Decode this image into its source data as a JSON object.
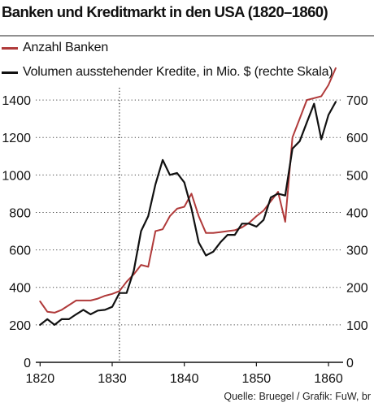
{
  "chart_data": {
    "type": "line",
    "title": "Banken und Kreditmarkt in den USA (1820–1860)",
    "source": "Quelle: Bruegel / Grafik: FuW, br",
    "x_ticks": [
      1820,
      1830,
      1840,
      1850,
      1860
    ],
    "x_tick_labels": [
      "1820",
      "1830",
      "1840",
      "1850",
      "1860"
    ],
    "xlim": [
      1819.4,
      1861.8
    ],
    "marked_year": 1831,
    "y_left": {
      "ylim": [
        0,
        1500
      ],
      "ticks": [
        0,
        200,
        400,
        600,
        800,
        1000,
        1200,
        1400
      ],
      "tick_labels": [
        "0",
        "200",
        "400",
        "600",
        "800",
        "1000",
        "1200",
        "1400"
      ]
    },
    "y_right": {
      "ylim": [
        0,
        750
      ],
      "ticks": [
        0,
        100,
        200,
        300,
        400,
        500,
        600,
        700
      ],
      "tick_labels": [
        "0",
        "100",
        "200",
        "300",
        "400",
        "500",
        "600",
        "700"
      ]
    },
    "grid": "horizontal-dotted",
    "series": [
      {
        "name": "Anzahl Banken",
        "axis": "left",
        "color": "#b03a3a",
        "x": [
          1820,
          1821,
          1822,
          1823,
          1824,
          1825,
          1826,
          1827,
          1828,
          1829,
          1830,
          1831,
          1832,
          1833,
          1834,
          1835,
          1836,
          1837,
          1838,
          1839,
          1840,
          1841,
          1842,
          1843,
          1844,
          1845,
          1846,
          1847,
          1848,
          1849,
          1850,
          1851,
          1852,
          1853,
          1854,
          1855,
          1856,
          1857,
          1858,
          1859,
          1860,
          1861
        ],
        "values": [
          325,
          270,
          265,
          280,
          305,
          330,
          330,
          330,
          340,
          355,
          365,
          380,
          430,
          470,
          520,
          510,
          700,
          710,
          780,
          820,
          830,
          900,
          780,
          690,
          690,
          695,
          700,
          705,
          720,
          745,
          780,
          810,
          860,
          910,
          750,
          1200,
          1300,
          1400,
          1410,
          1420,
          1480,
          1570
        ]
      },
      {
        "name": "Volumen ausstehender Kredite, in Mio. $ (rechte Skala)",
        "axis": "right",
        "color": "#111111",
        "x": [
          1820,
          1821,
          1822,
          1823,
          1824,
          1825,
          1826,
          1827,
          1828,
          1829,
          1830,
          1831,
          1832,
          1833,
          1834,
          1835,
          1836,
          1837,
          1838,
          1839,
          1840,
          1841,
          1842,
          1843,
          1844,
          1845,
          1846,
          1847,
          1848,
          1849,
          1850,
          1851,
          1852,
          1853,
          1854,
          1855,
          1856,
          1857,
          1858,
          1859,
          1860,
          1861
        ],
        "values": [
          100,
          115,
          100,
          115,
          115,
          128,
          140,
          128,
          138,
          140,
          148,
          185,
          185,
          245,
          350,
          390,
          475,
          540,
          500,
          505,
          480,
          410,
          320,
          285,
          295,
          320,
          340,
          340,
          370,
          370,
          362,
          380,
          440,
          450,
          445,
          570,
          590,
          640,
          690,
          595,
          660,
          695
        ]
      }
    ]
  }
}
